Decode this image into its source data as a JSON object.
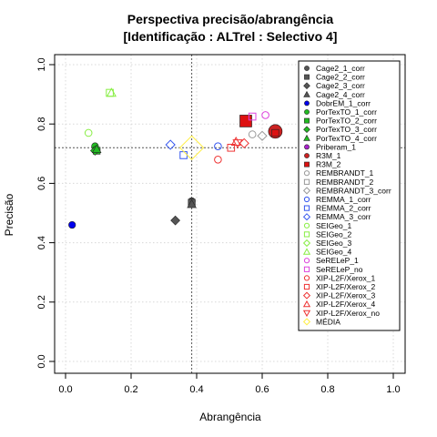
{
  "chart_data": {
    "type": "scatter",
    "title": [
      "Perspectiva precisão/abrangência",
      "[Identificação : ALTrel : Selectivo 4]"
    ],
    "xlabel": "Abrangência",
    "ylabel": "Precisão",
    "xlim": [
      0,
      1
    ],
    "ylim": [
      0,
      1
    ],
    "xticks": [
      "0.0",
      "0.2",
      "0.4",
      "0.6",
      "0.8",
      "1.0"
    ],
    "yticks": [
      "0.0",
      "0.2",
      "0.4",
      "0.6",
      "0.8",
      "1.0"
    ],
    "grid": true,
    "legend_position": "right",
    "reference_lines": {
      "x": 0.385,
      "y": 0.72
    },
    "series": [
      {
        "name": "Cage2_1_corr",
        "color": "#555555",
        "marker": "circle",
        "filled": true,
        "points": [
          [
            0.385,
            0.54
          ]
        ]
      },
      {
        "name": "Cage2_2_corr",
        "color": "#555555",
        "marker": "square",
        "filled": true,
        "points": [
          [
            0.385,
            0.535
          ]
        ]
      },
      {
        "name": "Cage2_3_corr",
        "color": "#555555",
        "marker": "diamond",
        "filled": true,
        "points": [
          [
            0.335,
            0.475
          ]
        ]
      },
      {
        "name": "Cage2_4_corr",
        "color": "#555555",
        "marker": "triangle",
        "filled": true,
        "points": [
          [
            0.385,
            0.53
          ]
        ]
      },
      {
        "name": "DobrEM_1_corr",
        "color": "#0000ee",
        "marker": "circle",
        "filled": true,
        "points": [
          [
            0.02,
            0.46
          ]
        ]
      },
      {
        "name": "PorTexTO_1_corr",
        "color": "#22bb22",
        "marker": "circle",
        "filled": true,
        "points": [
          [
            0.09,
            0.725
          ]
        ]
      },
      {
        "name": "PorTexTO_2_corr",
        "color": "#22bb22",
        "marker": "square",
        "filled": true,
        "points": [
          [
            0.095,
            0.71
          ]
        ]
      },
      {
        "name": "PorTexTO_3_corr",
        "color": "#22bb22",
        "marker": "diamond",
        "filled": true,
        "points": [
          [
            0.09,
            0.71
          ]
        ]
      },
      {
        "name": "PorTexTO_4_corr",
        "color": "#22bb22",
        "marker": "triangle",
        "filled": true,
        "points": [
          [
            0.095,
            0.715
          ]
        ]
      },
      {
        "name": "Priberam_1",
        "color": "#aa22cc",
        "marker": "circle",
        "filled": true,
        "points": []
      },
      {
        "name": "R3M_1",
        "color": "#cc2222",
        "marker": "circle",
        "filled": true,
        "points": [
          [
            0.64,
            0.775
          ]
        ]
      },
      {
        "name": "R3M_2",
        "color": "#dd1111",
        "marker": "square",
        "filled": true,
        "points": [
          [
            0.55,
            0.81
          ],
          [
            0.64,
            0.77
          ]
        ]
      },
      {
        "name": "REMBRANDT_1",
        "color": "#999999",
        "marker": "circle",
        "filled": false,
        "points": [
          [
            0.57,
            0.765
          ]
        ]
      },
      {
        "name": "REMBRANDT_2",
        "color": "#999999",
        "marker": "square",
        "filled": false,
        "points": []
      },
      {
        "name": "REMBRANDT_3_corr",
        "color": "#999999",
        "marker": "diamond",
        "filled": false,
        "points": [
          [
            0.6,
            0.76
          ]
        ]
      },
      {
        "name": "REMMA_1_corr",
        "color": "#3355ee",
        "marker": "circle",
        "filled": false,
        "points": [
          [
            0.465,
            0.725
          ]
        ]
      },
      {
        "name": "REMMA_2_corr",
        "color": "#3355ee",
        "marker": "square",
        "filled": false,
        "points": [
          [
            0.36,
            0.695
          ]
        ]
      },
      {
        "name": "REMMA_3_corr",
        "color": "#3355ee",
        "marker": "diamond",
        "filled": false,
        "points": [
          [
            0.32,
            0.73
          ]
        ]
      },
      {
        "name": "SEIGeo_1",
        "color": "#88ee44",
        "marker": "circle",
        "filled": false,
        "points": [
          [
            0.07,
            0.77
          ]
        ]
      },
      {
        "name": "SEIGeo_2",
        "color": "#88ee44",
        "marker": "square",
        "filled": false,
        "points": [
          [
            0.135,
            0.905
          ]
        ]
      },
      {
        "name": "SEIGeo_3",
        "color": "#88ee44",
        "marker": "diamond",
        "filled": false,
        "points": []
      },
      {
        "name": "SEIGeo_4",
        "color": "#88ee44",
        "marker": "triangle",
        "filled": false,
        "points": [
          [
            0.14,
            0.905
          ]
        ]
      },
      {
        "name": "SeRELeP_1",
        "color": "#dd44dd",
        "marker": "circle",
        "filled": false,
        "points": [
          [
            0.61,
            0.83
          ]
        ]
      },
      {
        "name": "SeRELeP_no",
        "color": "#dd44dd",
        "marker": "square",
        "filled": false,
        "points": [
          [
            0.57,
            0.825
          ]
        ]
      },
      {
        "name": "XIP-L2F/Xerox_1",
        "color": "#ee3333",
        "marker": "circle",
        "filled": false,
        "points": [
          [
            0.465,
            0.68
          ]
        ]
      },
      {
        "name": "XIP-L2F/Xerox_2",
        "color": "#ee3333",
        "marker": "square",
        "filled": false,
        "points": [
          [
            0.505,
            0.72
          ]
        ]
      },
      {
        "name": "XIP-L2F/Xerox_3",
        "color": "#ee3333",
        "marker": "diamond",
        "filled": false,
        "points": [
          [
            0.545,
            0.735
          ]
        ]
      },
      {
        "name": "XIP-L2F/Xerox_4",
        "color": "#ee3333",
        "marker": "triangle",
        "filled": false,
        "points": [
          [
            0.52,
            0.74
          ]
        ]
      },
      {
        "name": "XIP-L2F/Xerox_no",
        "color": "#ee3333",
        "marker": "triangle-down",
        "filled": false,
        "points": [
          [
            0.525,
            0.735
          ]
        ]
      },
      {
        "name": "MÉDIA",
        "color": "#ffee44",
        "marker": "diamond",
        "filled": false,
        "large": true,
        "points": [
          [
            0.385,
            0.72
          ]
        ]
      }
    ]
  }
}
